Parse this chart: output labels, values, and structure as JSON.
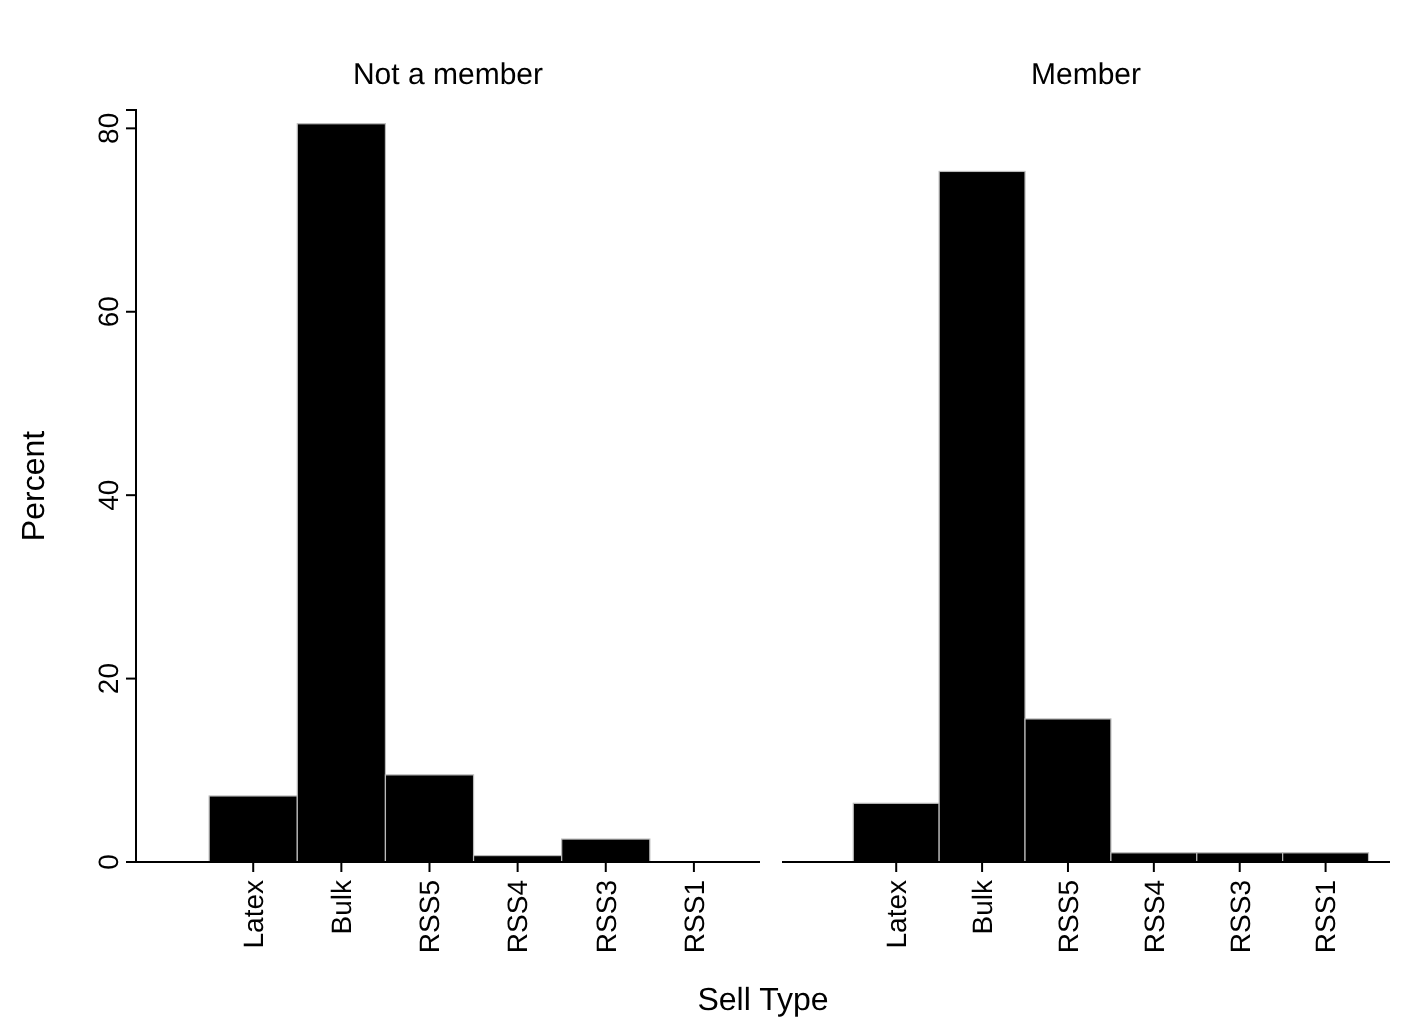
{
  "chart_data": [
    {
      "type": "bar",
      "title": "Not a member",
      "ylabel": "Percent",
      "xlabel": "Sell Type",
      "categories": [
        "Latex",
        "Bulk",
        "RSS5",
        "RSS4",
        "RSS3",
        "RSS1"
      ],
      "values": [
        7.2,
        80.5,
        9.5,
        0.7,
        2.5,
        0
      ],
      "color": "#000000",
      "ylim": [
        0,
        82
      ],
      "yticks": [
        0,
        20,
        40,
        60,
        80
      ],
      "grid": false
    },
    {
      "type": "bar",
      "title": "Member",
      "categories": [
        "Latex",
        "Bulk",
        "RSS5",
        "RSS4",
        "RSS3",
        "RSS1"
      ],
      "values": [
        6.4,
        75.3,
        15.6,
        1.0,
        1.0,
        1.0
      ],
      "color": "#000000",
      "ylim": [
        0,
        80
      ],
      "yticks": [
        0,
        20,
        40,
        60,
        80
      ],
      "tick_labels": "x",
      "grid": false
    }
  ]
}
